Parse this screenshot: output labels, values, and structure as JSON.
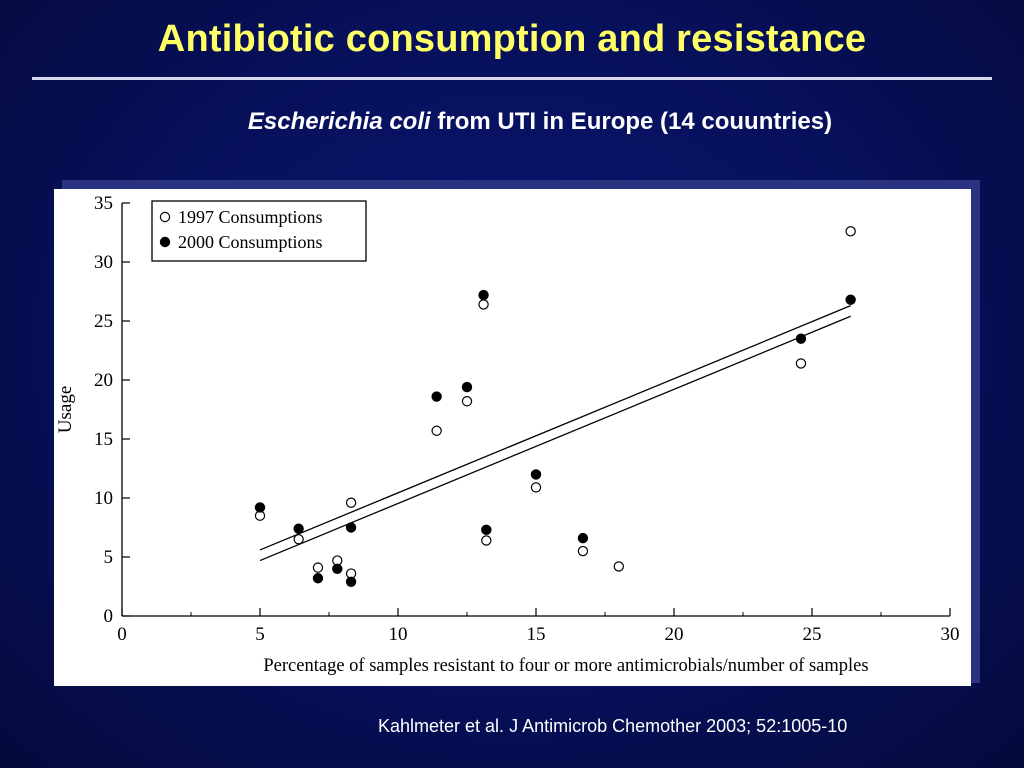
{
  "slide": {
    "title": "Antibiotic consumption and resistance",
    "subtitle_species": "Escherichia coli",
    "subtitle_rest": " from UTI in Europe (14 couuntries)",
    "citation": "Kahlmeter et al. J Antimicrob Chemother 2003; 52:1005-10",
    "colors": {
      "background": "#07105a",
      "title": "#ffff66",
      "text": "#ffffff"
    }
  },
  "chart_data": {
    "type": "scatter",
    "title": "",
    "xlabel": "Percentage of samples resistant to four or more antimicrobials/number of samples",
    "ylabel": "Usage",
    "xlim": [
      0,
      30
    ],
    "ylim": [
      0,
      35
    ],
    "xticks": [
      "0",
      "5",
      "10",
      "15",
      "20",
      "25",
      "30"
    ],
    "yticks": [
      "0",
      "5",
      "10",
      "15",
      "20",
      "25",
      "30",
      "35"
    ],
    "grid": false,
    "legend_position": "top-left",
    "series": [
      {
        "name": "1997 Consumptions",
        "marker": "open-circle",
        "points": [
          [
            5.0,
            8.5
          ],
          [
            6.4,
            6.5
          ],
          [
            7.1,
            4.1
          ],
          [
            7.8,
            4.7
          ],
          [
            8.3,
            3.6
          ],
          [
            8.3,
            9.6
          ],
          [
            11.4,
            15.7
          ],
          [
            12.5,
            18.2
          ],
          [
            13.1,
            26.4
          ],
          [
            13.2,
            6.4
          ],
          [
            15.0,
            10.9
          ],
          [
            16.7,
            5.5
          ],
          [
            18.0,
            4.2
          ],
          [
            24.6,
            21.4
          ],
          [
            26.4,
            32.6
          ]
        ],
        "trend": [
          [
            5.0,
            4.7
          ],
          [
            26.4,
            25.4
          ]
        ]
      },
      {
        "name": "2000 Consumptions",
        "marker": "filled-circle",
        "points": [
          [
            5.0,
            9.2
          ],
          [
            6.4,
            7.4
          ],
          [
            7.1,
            3.2
          ],
          [
            7.8,
            4.0
          ],
          [
            8.3,
            2.9
          ],
          [
            8.3,
            7.5
          ],
          [
            11.4,
            18.6
          ],
          [
            12.5,
            19.4
          ],
          [
            13.1,
            27.2
          ],
          [
            13.2,
            7.3
          ],
          [
            15.0,
            12.0
          ],
          [
            16.7,
            6.6
          ],
          [
            24.6,
            23.5
          ],
          [
            26.4,
            26.8
          ]
        ],
        "trend": [
          [
            5.0,
            5.6
          ],
          [
            26.4,
            26.3
          ]
        ]
      }
    ]
  }
}
